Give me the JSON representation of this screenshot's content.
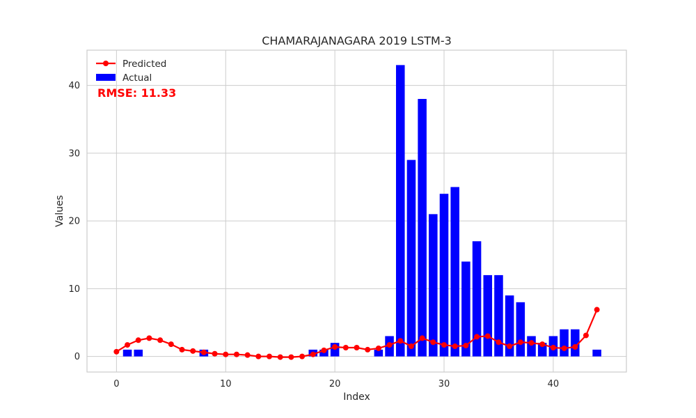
{
  "chart_data": {
    "type": "bar",
    "title": "CHAMARAJANAGARA 2019 LSTM-3",
    "xlabel": "Index",
    "ylabel": "Values",
    "xlim": [
      -2.7,
      46.7
    ],
    "ylim": [
      -2.3,
      45.2
    ],
    "x_ticks": [
      0,
      10,
      20,
      30,
      40
    ],
    "y_ticks": [
      0,
      10,
      20,
      30,
      40
    ],
    "grid": true,
    "legend_placement": "top-left",
    "annotation": {
      "text": "RMSE: 11.33",
      "color": "#ff0000"
    },
    "series": [
      {
        "name": "Actual",
        "kind": "bar",
        "color": "#0000ff",
        "x": [
          1,
          2,
          8,
          18,
          19,
          20,
          24,
          25,
          26,
          27,
          28,
          29,
          30,
          31,
          32,
          33,
          34,
          35,
          36,
          37,
          38,
          39,
          40,
          41,
          42,
          44
        ],
        "values": [
          1,
          1,
          1,
          1,
          1,
          2,
          1,
          3,
          43,
          29,
          38,
          21,
          24,
          25,
          14,
          17,
          12,
          12,
          9,
          8,
          3,
          2,
          3,
          4,
          4,
          1
        ]
      },
      {
        "name": "Predicted",
        "kind": "line",
        "color": "#ff0000",
        "x": [
          0,
          1,
          2,
          3,
          4,
          5,
          6,
          7,
          8,
          9,
          10,
          11,
          12,
          13,
          14,
          15,
          16,
          17,
          18,
          19,
          20,
          21,
          22,
          23,
          24,
          25,
          26,
          27,
          28,
          29,
          30,
          31,
          32,
          33,
          34,
          35,
          36,
          37,
          38,
          39,
          40,
          41,
          42,
          43,
          44
        ],
        "values": [
          0.7,
          1.7,
          2.4,
          2.7,
          2.4,
          1.8,
          1.0,
          0.8,
          0.6,
          0.4,
          0.3,
          0.3,
          0.2,
          0.0,
          0.0,
          -0.1,
          -0.1,
          0.0,
          0.3,
          0.9,
          1.4,
          1.3,
          1.3,
          1.0,
          1.2,
          1.7,
          2.3,
          1.5,
          2.7,
          2.1,
          1.7,
          1.5,
          1.6,
          2.9,
          3.0,
          2.1,
          1.5,
          2.1,
          2.0,
          1.8,
          1.3,
          1.2,
          1.4,
          3.1,
          6.9
        ]
      }
    ]
  }
}
